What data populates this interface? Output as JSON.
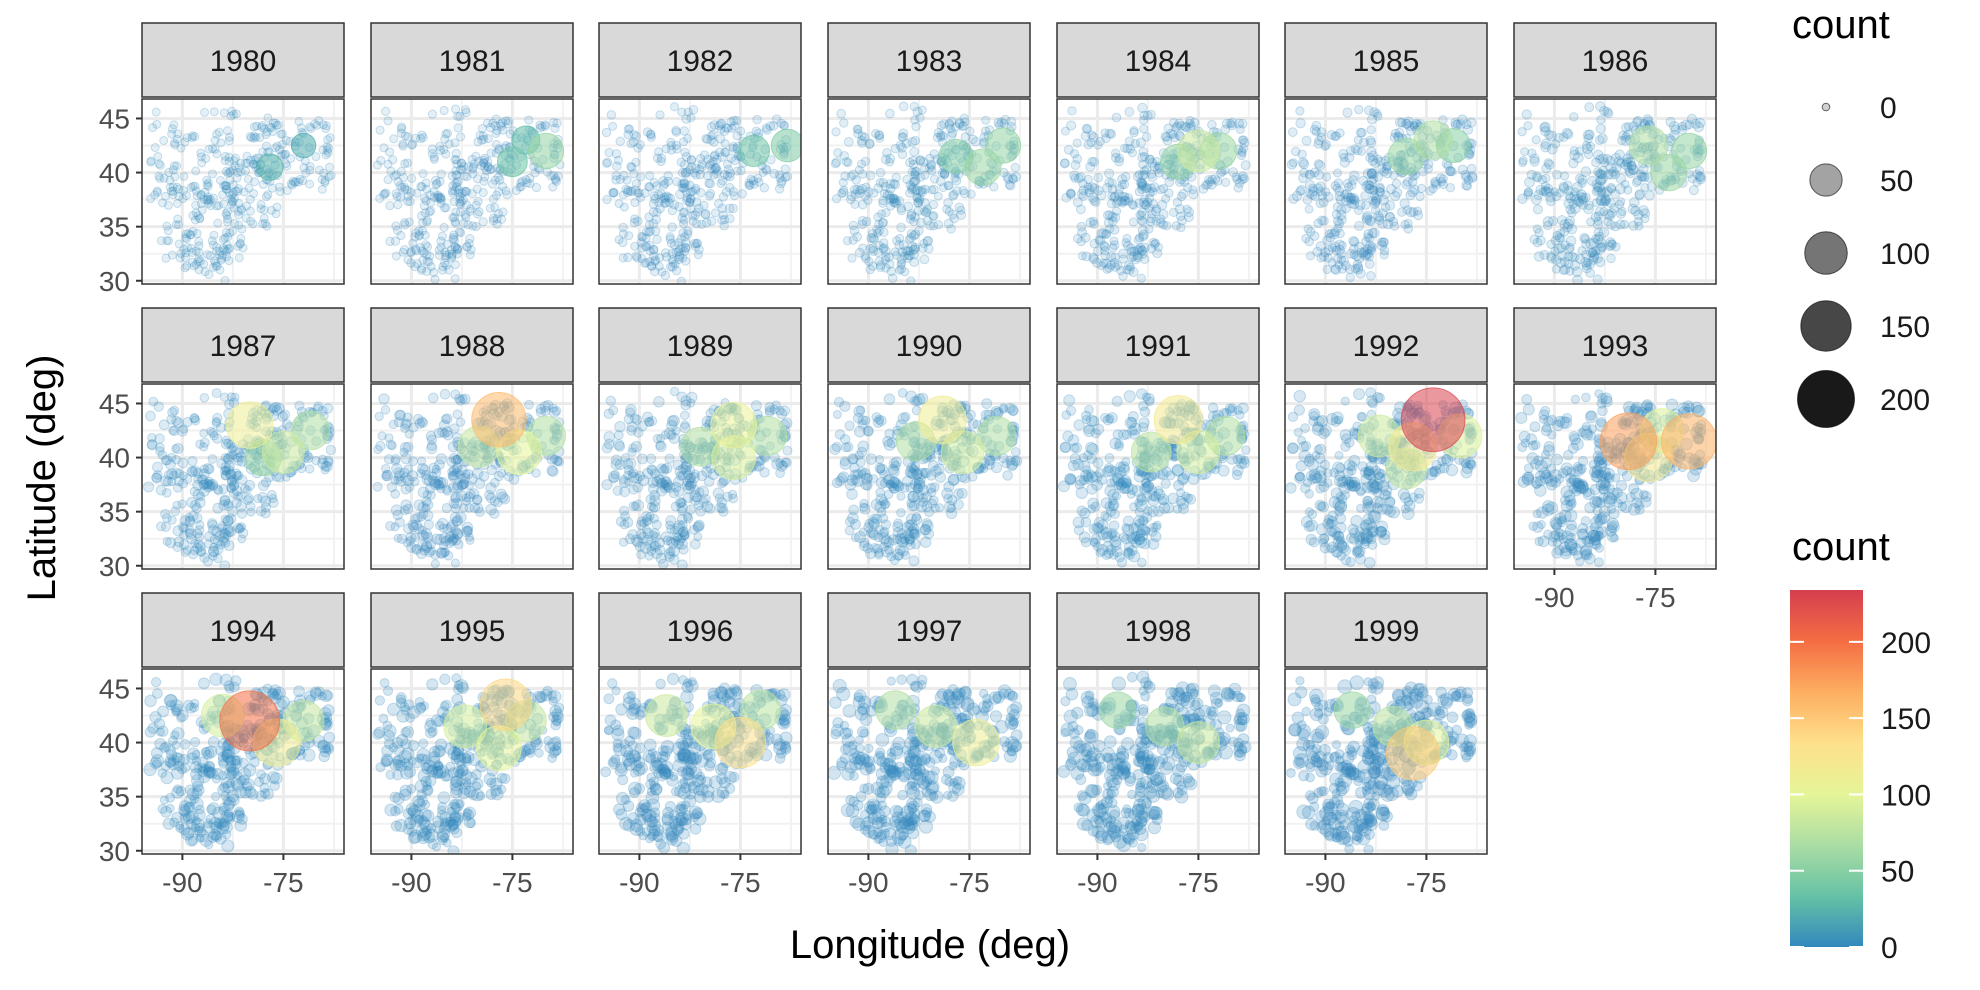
{
  "chart_data": {
    "type": "scatter",
    "subtype": "faceted-bubble-map",
    "title": "",
    "xlabel": "Longitude (deg)",
    "ylabel": "Latitude (deg)",
    "xlim": [
      -96,
      -66
    ],
    "ylim": [
      29.7,
      46.8
    ],
    "x_ticks": [
      -90,
      -75
    ],
    "y_ticks": [
      30,
      35,
      40,
      45
    ],
    "grid": true,
    "facet_columns": 7,
    "size_legend": {
      "title": "count",
      "breaks": [
        0,
        50,
        100,
        150,
        200
      ]
    },
    "color_legend": {
      "title": "count",
      "breaks": [
        0,
        50,
        100,
        150,
        200
      ],
      "limits": [
        0,
        234
      ],
      "palette": [
        "#3288bd",
        "#66c2a5",
        "#abdda4",
        "#e6f598",
        "#fee08b",
        "#fdae61",
        "#f46d43",
        "#d53e4f"
      ]
    },
    "facets": [
      {
        "year": "1980",
        "hotspots": [
          {
            "lon": -77,
            "lat": 40.5,
            "count": 25
          },
          {
            "lon": -72,
            "lat": 42.5,
            "count": 20
          }
        ]
      },
      {
        "year": "1981",
        "hotspots": [
          {
            "lon": -75,
            "lat": 41,
            "count": 35
          },
          {
            "lon": -70,
            "lat": 42,
            "count": 55
          },
          {
            "lon": -73,
            "lat": 43,
            "count": 30
          }
        ]
      },
      {
        "year": "1982",
        "hotspots": [
          {
            "lon": -73,
            "lat": 42,
            "count": 40
          },
          {
            "lon": -68,
            "lat": 42.5,
            "count": 45
          }
        ]
      },
      {
        "year": "1983",
        "hotspots": [
          {
            "lon": -77,
            "lat": 41.5,
            "count": 50
          },
          {
            "lon": -73,
            "lat": 40.5,
            "count": 60
          },
          {
            "lon": -70,
            "lat": 42.5,
            "count": 55
          }
        ]
      },
      {
        "year": "1984",
        "hotspots": [
          {
            "lon": -78,
            "lat": 41,
            "count": 55
          },
          {
            "lon": -75,
            "lat": 42,
            "count": 85
          },
          {
            "lon": -72,
            "lat": 42,
            "count": 60
          }
        ]
      },
      {
        "year": "1985",
        "hotspots": [
          {
            "lon": -78,
            "lat": 41.5,
            "count": 60
          },
          {
            "lon": -74,
            "lat": 43,
            "count": 70
          },
          {
            "lon": -71,
            "lat": 42.5,
            "count": 50
          }
        ]
      },
      {
        "year": "1986",
        "hotspots": [
          {
            "lon": -76,
            "lat": 42.5,
            "count": 70
          },
          {
            "lon": -73,
            "lat": 40,
            "count": 60
          },
          {
            "lon": -70,
            "lat": 42,
            "count": 55
          }
        ]
      },
      {
        "year": "1987",
        "hotspots": [
          {
            "lon": -80,
            "lat": 43,
            "count": 110
          },
          {
            "lon": -75,
            "lat": 40.5,
            "count": 85
          },
          {
            "lon": -71,
            "lat": 42.5,
            "count": 70
          },
          {
            "lon": -78,
            "lat": 40,
            "count": 60
          }
        ]
      },
      {
        "year": "1988",
        "hotspots": [
          {
            "lon": -77,
            "lat": 43.5,
            "count": 160
          },
          {
            "lon": -74,
            "lat": 40.5,
            "count": 100
          },
          {
            "lon": -80,
            "lat": 41,
            "count": 80
          },
          {
            "lon": -70,
            "lat": 42,
            "count": 70
          }
        ]
      },
      {
        "year": "1989",
        "hotspots": [
          {
            "lon": -76,
            "lat": 43,
            "count": 105
          },
          {
            "lon": -76,
            "lat": 40,
            "count": 95
          },
          {
            "lon": -81,
            "lat": 41,
            "count": 70
          },
          {
            "lon": -71,
            "lat": 42,
            "count": 70
          }
        ]
      },
      {
        "year": "1990",
        "hotspots": [
          {
            "lon": -79,
            "lat": 43.5,
            "count": 115
          },
          {
            "lon": -76,
            "lat": 40.5,
            "count": 90
          },
          {
            "lon": -83,
            "lat": 41.5,
            "count": 70
          },
          {
            "lon": -71,
            "lat": 42,
            "count": 70
          }
        ]
      },
      {
        "year": "1991",
        "hotspots": [
          {
            "lon": -78,
            "lat": 43.5,
            "count": 120
          },
          {
            "lon": -75,
            "lat": 40.5,
            "count": 90
          },
          {
            "lon": -82,
            "lat": 40.5,
            "count": 75
          },
          {
            "lon": -71,
            "lat": 42,
            "count": 70
          }
        ]
      },
      {
        "year": "1992",
        "hotspots": [
          {
            "lon": -74,
            "lat": 43.5,
            "count": 230
          },
          {
            "lon": -77,
            "lat": 41,
            "count": 120
          },
          {
            "lon": -82,
            "lat": 42,
            "count": 85
          },
          {
            "lon": -70,
            "lat": 42,
            "count": 95
          },
          {
            "lon": -78,
            "lat": 39,
            "count": 80
          }
        ]
      },
      {
        "year": "1993",
        "hotspots": [
          {
            "lon": -79,
            "lat": 41.5,
            "count": 175
          },
          {
            "lon": -70,
            "lat": 41.5,
            "count": 165
          },
          {
            "lon": -76,
            "lat": 40,
            "count": 120
          },
          {
            "lon": -74,
            "lat": 42.5,
            "count": 95
          }
        ]
      },
      {
        "year": "1994",
        "hotspots": [
          {
            "lon": -80,
            "lat": 42,
            "count": 200
          },
          {
            "lon": -76,
            "lat": 40,
            "count": 115
          },
          {
            "lon": -84,
            "lat": 42.5,
            "count": 90
          },
          {
            "lon": -72,
            "lat": 42,
            "count": 80
          }
        ]
      },
      {
        "year": "1995",
        "hotspots": [
          {
            "lon": -76,
            "lat": 43.5,
            "count": 140
          },
          {
            "lon": -77,
            "lat": 39.5,
            "count": 100
          },
          {
            "lon": -82,
            "lat": 41.5,
            "count": 90
          },
          {
            "lon": -73,
            "lat": 42,
            "count": 80
          }
        ]
      },
      {
        "year": "1996",
        "hotspots": [
          {
            "lon": -75,
            "lat": 40,
            "count": 135
          },
          {
            "lon": -79,
            "lat": 41.5,
            "count": 100
          },
          {
            "lon": -86,
            "lat": 42.5,
            "count": 85
          },
          {
            "lon": -72,
            "lat": 43,
            "count": 75
          }
        ]
      },
      {
        "year": "1997",
        "hotspots": [
          {
            "lon": -74,
            "lat": 40,
            "count": 110
          },
          {
            "lon": -80,
            "lat": 41.5,
            "count": 85
          },
          {
            "lon": -86,
            "lat": 43,
            "count": 70
          }
        ]
      },
      {
        "year": "1998",
        "hotspots": [
          {
            "lon": -75,
            "lat": 40,
            "count": 85
          },
          {
            "lon": -80,
            "lat": 41.5,
            "count": 70
          },
          {
            "lon": -87,
            "lat": 43,
            "count": 60
          }
        ]
      },
      {
        "year": "1999",
        "hotspots": [
          {
            "lon": -75,
            "lat": 40,
            "count": 100
          },
          {
            "lon": -80,
            "lat": 41.5,
            "count": 75
          },
          {
            "lon": -77,
            "lat": 39,
            "count": 150
          },
          {
            "lon": -86,
            "lat": 43,
            "count": 60
          }
        ]
      }
    ]
  }
}
